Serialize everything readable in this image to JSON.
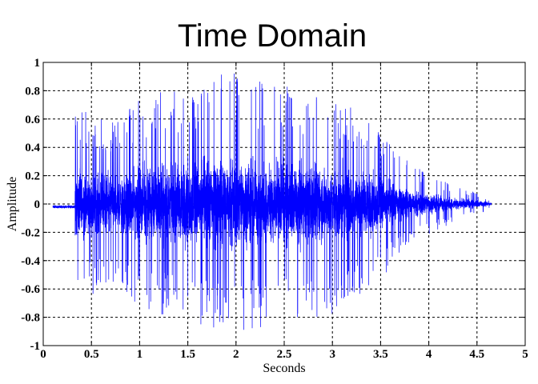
{
  "chart_data": {
    "type": "line",
    "title": "Time Domain",
    "xlabel": "Seconds",
    "ylabel": "Amplitude",
    "xlim": [
      0,
      5
    ],
    "ylim": [
      -1,
      1
    ],
    "grid": true,
    "series_color": "#0000ff",
    "x_ticks": [
      "0",
      "0.5",
      "1",
      "1.5",
      "2",
      "2.5",
      "3",
      "3.5",
      "4",
      "4.5",
      "5"
    ],
    "y_ticks": [
      "1",
      "0.8",
      "0.6",
      "0.4",
      "0.2",
      "0",
      "-0.2",
      "-0.4",
      "-0.6",
      "-0.8",
      "-1"
    ],
    "series": [
      {
        "signal_start": 0.1,
        "onset": 0.33,
        "signal_end": 4.65,
        "envelope": {
          "t": [
            0.33,
            0.5,
            0.8,
            1.0,
            1.3,
            1.6,
            1.9,
            2.1,
            2.5,
            2.8,
            3.0,
            3.3,
            3.5,
            3.7,
            3.9,
            4.1,
            4.3,
            4.5,
            4.65
          ],
          "amp": [
            0.72,
            0.65,
            0.6,
            0.75,
            0.82,
            0.85,
            0.95,
            0.9,
            0.85,
            0.8,
            0.78,
            0.7,
            0.55,
            0.35,
            0.25,
            0.18,
            0.12,
            0.08,
            0.03
          ]
        }
      }
    ]
  }
}
